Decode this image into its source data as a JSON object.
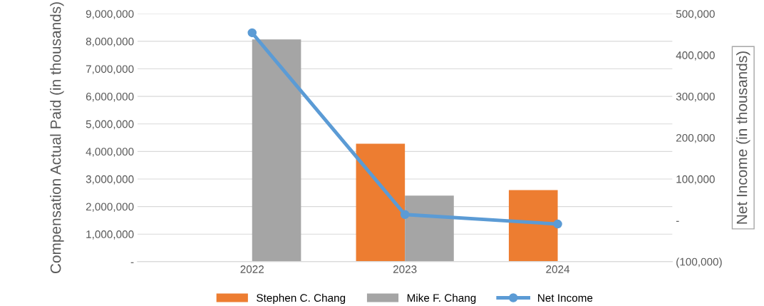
{
  "chart_data": {
    "type": "bar",
    "categories": [
      "2022",
      "2023",
      "2024"
    ],
    "series": [
      {
        "name": "Stephen C. Chang",
        "color": "#ed7d31",
        "values": [
          null,
          4280000,
          2600000
        ]
      },
      {
        "name": "Mike F. Chang",
        "color": "#a5a5a5",
        "values": [
          8070000,
          2400000,
          null
        ]
      },
      {
        "name": "Net Income",
        "type": "line",
        "axis": "y2",
        "color": "#5b9bd5",
        "marker": "circle",
        "values": [
          454000,
          14000,
          -9000
        ]
      }
    ],
    "ylabel": "Compensation Actual Paid (in thousands)",
    "y2label": "Net Income (in thousands)",
    "ylim": [
      0,
      9000000
    ],
    "yticks": [
      {
        "value": 0,
        "label": "-"
      },
      {
        "value": 1000000,
        "label": "1,000,000"
      },
      {
        "value": 2000000,
        "label": "2,000,000"
      },
      {
        "value": 3000000,
        "label": "3,000,000"
      },
      {
        "value": 4000000,
        "label": "4,000,000"
      },
      {
        "value": 5000000,
        "label": "5,000,000"
      },
      {
        "value": 6000000,
        "label": "6,000,000"
      },
      {
        "value": 7000000,
        "label": "7,000,000"
      },
      {
        "value": 8000000,
        "label": "8,000,000"
      },
      {
        "value": 9000000,
        "label": "9,000,000"
      }
    ],
    "y2lim": [
      -100000,
      500000
    ],
    "y2ticks": [
      {
        "value": -100000,
        "label": "(100,000)"
      },
      {
        "value": 0,
        "label": "-"
      },
      {
        "value": 100000,
        "label": "100,000"
      },
      {
        "value": 200000,
        "label": "200,000"
      },
      {
        "value": 300000,
        "label": "300,000"
      },
      {
        "value": 400000,
        "label": "400,000"
      },
      {
        "value": 500000,
        "label": "500,000"
      }
    ],
    "grid": "y",
    "legend": "bottom"
  }
}
